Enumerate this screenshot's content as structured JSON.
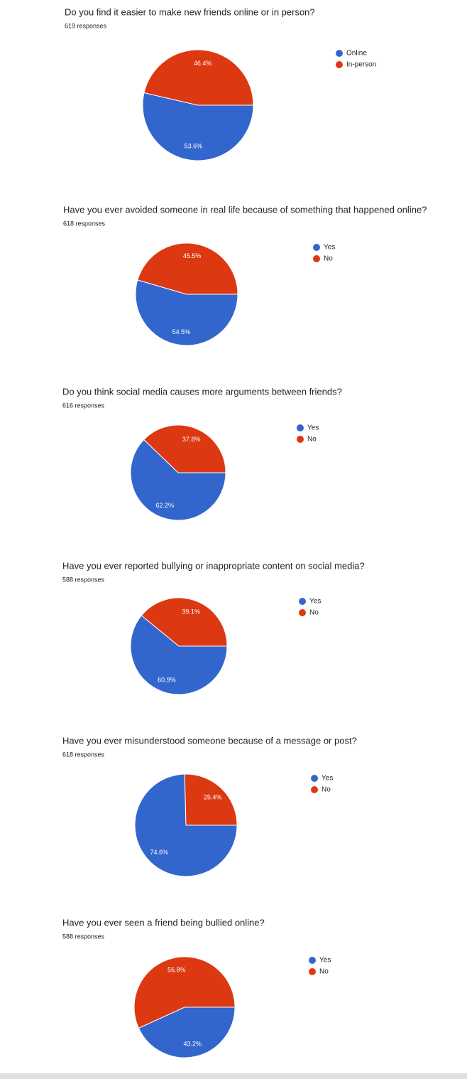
{
  "chart_data": [
    {
      "type": "pie",
      "title": "Do you find it easier to make new friends online or in person?",
      "subtitle": "619 responses",
      "categories": [
        "Online",
        "In-person"
      ],
      "values": [
        53.6,
        46.4
      ],
      "value_labels": [
        "53.6%",
        "46.4%"
      ],
      "colors": [
        "#3366cc",
        "#dc3912"
      ]
    },
    {
      "type": "pie",
      "title": "Have you ever avoided someone in real life because of something that happened online?",
      "subtitle": "618 responses",
      "categories": [
        "Yes",
        "No"
      ],
      "values": [
        54.5,
        45.5
      ],
      "value_labels": [
        "54.5%",
        "45.5%"
      ],
      "colors": [
        "#3366cc",
        "#dc3912"
      ]
    },
    {
      "type": "pie",
      "title": "Do you think social media causes more arguments between friends?",
      "subtitle": "616 responses",
      "categories": [
        "Yes",
        "No"
      ],
      "values": [
        62.2,
        37.8
      ],
      "value_labels": [
        "62.2%",
        "37.8%"
      ],
      "colors": [
        "#3366cc",
        "#dc3912"
      ]
    },
    {
      "type": "pie",
      "title": "Have you ever reported bullying or inappropriate content on social media?",
      "subtitle": "588 responses",
      "categories": [
        "Yes",
        "No"
      ],
      "values": [
        60.9,
        39.1
      ],
      "value_labels": [
        "60.9%",
        "39.1%"
      ],
      "colors": [
        "#3366cc",
        "#dc3912"
      ]
    },
    {
      "type": "pie",
      "title": "Have you ever misunderstood someone because of a message or post?",
      "subtitle": "618 responses",
      "categories": [
        "Yes",
        "No"
      ],
      "values": [
        74.6,
        25.4
      ],
      "value_labels": [
        "74.6%",
        "25.4%"
      ],
      "colors": [
        "#3366cc",
        "#dc3912"
      ]
    },
    {
      "type": "pie",
      "title": "Have you ever seen a friend being bullied online?",
      "subtitle": "588 responses",
      "categories": [
        "Yes",
        "No"
      ],
      "values": [
        43.2,
        56.8
      ],
      "value_labels": [
        "43.2%",
        "56.8%"
      ],
      "colors": [
        "#3366cc",
        "#dc3912"
      ]
    }
  ]
}
